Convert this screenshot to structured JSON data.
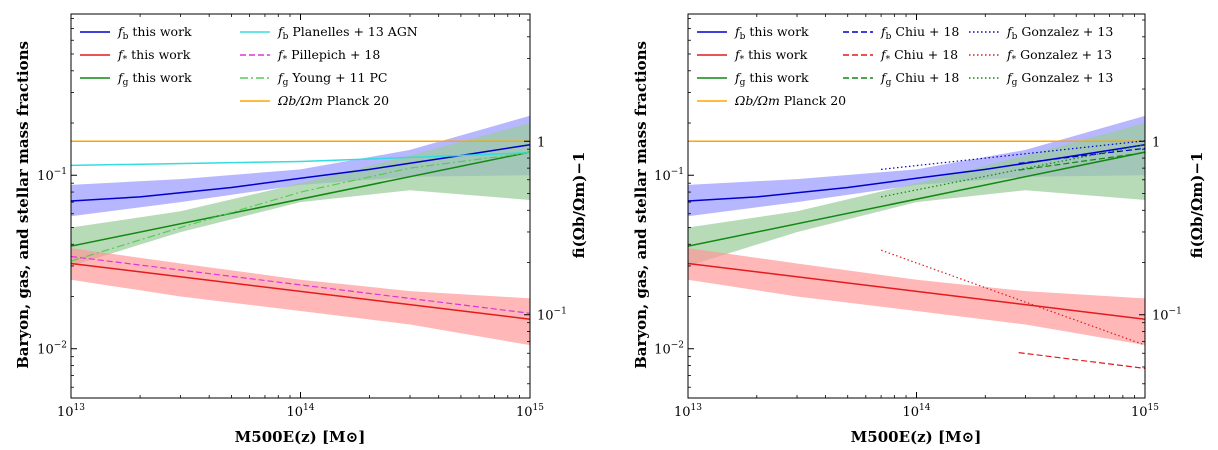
{
  "figure": {
    "xlabel": "M500E(z) [M⊙]",
    "ylabel_left": "Baryon, gas, and stellar mass fractions",
    "ylabel_right": "fi(Ωb/Ωm)−1"
  },
  "colors": {
    "fb": "#0000cc",
    "fstar": "#e41a1c",
    "fg": "#118811",
    "fb_band": "#9999ff",
    "fstar_band": "#ff9999",
    "fg_band": "#99cc99",
    "planck": "#ffa500",
    "planelles": "#33dddd",
    "pillepich": "#dd33dd",
    "young": "#55cc55"
  },
  "chart_data": [
    {
      "type": "line",
      "x_scale": "log",
      "y_scale": "log",
      "xlim": [
        10000000000000.0,
        1000000000000000.0
      ],
      "ylim": [
        0.0052,
        0.85
      ],
      "right_axis": {
        "scale": "log",
        "ticks": [
          {
            "value": 1,
            "label": "1"
          },
          {
            "value": 0.1,
            "label": "10−1"
          }
        ],
        "omega_b_over_omega_m": 0.157
      },
      "x_ticks": [
        {
          "value": 10000000000000.0,
          "label": "1013"
        },
        {
          "value": 100000000000000.0,
          "label": "1014"
        },
        {
          "value": 1000000000000000.0,
          "label": "1015"
        }
      ],
      "y_ticks": [
        {
          "value": 0.1,
          "label": "10−1"
        },
        {
          "value": 0.01,
          "label": "10−2"
        }
      ],
      "legend_position": "top",
      "bands": [
        {
          "series": "fb",
          "x": [
            10000000000000.0,
            30000000000000.0,
            100000000000000.0,
            300000000000000.0,
            1000000000000000.0
          ],
          "lower": [
            0.058,
            0.07,
            0.088,
            0.098,
            0.1
          ],
          "upper": [
            0.088,
            0.095,
            0.108,
            0.14,
            0.22
          ]
        },
        {
          "series": "fg",
          "x": [
            10000000000000.0,
            30000000000000.0,
            100000000000000.0,
            300000000000000.0,
            1000000000000000.0
          ],
          "lower": [
            0.03,
            0.047,
            0.07,
            0.082,
            0.072
          ],
          "upper": [
            0.05,
            0.062,
            0.09,
            0.13,
            0.2
          ]
        },
        {
          "series": "fstar",
          "x": [
            10000000000000.0,
            30000000000000.0,
            100000000000000.0,
            300000000000000.0,
            1000000000000000.0
          ],
          "lower": [
            0.025,
            0.02,
            0.0165,
            0.0138,
            0.0105
          ],
          "upper": [
            0.038,
            0.031,
            0.025,
            0.0215,
            0.0195
          ]
        }
      ],
      "series": [
        {
          "name": "fb this work",
          "key": "fb",
          "style": "solid",
          "x": [
            10000000000000.0,
            20000000000000.0,
            50000000000000.0,
            100000000000000.0,
            200000000000000.0,
            500000000000000.0,
            1000000000000000.0
          ],
          "y": [
            0.071,
            0.075,
            0.085,
            0.096,
            0.108,
            0.13,
            0.15
          ]
        },
        {
          "name": "f* this work",
          "key": "fstar",
          "style": "solid",
          "x": [
            10000000000000.0,
            1000000000000000.0
          ],
          "y": [
            0.031,
            0.0148
          ]
        },
        {
          "name": "fg this work",
          "key": "fg",
          "style": "solid",
          "x": [
            10000000000000.0,
            1000000000000000.0
          ],
          "y": [
            0.039,
            0.136
          ]
        },
        {
          "name": "Ωb/Ωm Planck 20",
          "key": "planck",
          "style": "solid",
          "x": [
            10000000000000.0,
            1000000000000000.0
          ],
          "y": [
            0.157,
            0.157
          ]
        },
        {
          "name": "fb Planelles + 13 AGN",
          "key": "planelles",
          "style": "solid",
          "x": [
            10000000000000.0,
            100000000000000.0,
            500000000000000.0,
            1000000000000000.0
          ],
          "y": [
            0.114,
            0.12,
            0.13,
            0.135
          ]
        },
        {
          "name": "f* Pillepich + 18",
          "key": "pillepich",
          "style": "dashed",
          "x": [
            10000000000000.0,
            1000000000000000.0
          ],
          "y": [
            0.034,
            0.016
          ]
        },
        {
          "name": "fg Young + 11 PC",
          "key": "young",
          "style": "dashdot",
          "x": [
            10000000000000.0,
            30000000000000.0,
            100000000000000.0,
            300000000000000.0,
            1000000000000000.0
          ],
          "y": [
            0.032,
            0.05,
            0.08,
            0.11,
            0.135
          ]
        }
      ],
      "legend": [
        {
          "key": "fb",
          "style": "solid",
          "sym": "f",
          "sub": "b",
          "text": "this work"
        },
        {
          "key": "fstar",
          "style": "solid",
          "sym": "f",
          "sub": "*",
          "text": "this work"
        },
        {
          "key": "fg",
          "style": "solid",
          "sym": "f",
          "sub": "g",
          "text": "this work"
        },
        {
          "key": "planelles",
          "style": "solid",
          "sym": "f",
          "sub": "b",
          "text": "Planelles + 13 AGN"
        },
        {
          "key": "pillepich",
          "style": "dashed",
          "sym": "f",
          "sub": "*",
          "text": "Pillepich + 18"
        },
        {
          "key": "young",
          "style": "dashdot",
          "sym": "f",
          "sub": "g",
          "text": "Young + 11 PC"
        },
        {
          "key": "planck",
          "style": "solid",
          "sym": "Ωb/Ωm",
          "sub": "",
          "text": "Planck 20"
        }
      ]
    },
    {
      "type": "line",
      "x_scale": "log",
      "y_scale": "log",
      "xlim": [
        10000000000000.0,
        1000000000000000.0
      ],
      "ylim": [
        0.0052,
        0.85
      ],
      "right_axis": {
        "scale": "log",
        "ticks": [
          {
            "value": 1,
            "label": "1"
          },
          {
            "value": 0.1,
            "label": "10−1"
          }
        ],
        "omega_b_over_omega_m": 0.157
      },
      "x_ticks": [
        {
          "value": 10000000000000.0,
          "label": "1013"
        },
        {
          "value": 100000000000000.0,
          "label": "1014"
        },
        {
          "value": 1000000000000000.0,
          "label": "1015"
        }
      ],
      "y_ticks": [
        {
          "value": 0.1,
          "label": "10−1"
        },
        {
          "value": 0.01,
          "label": "10−2"
        }
      ],
      "legend_position": "top",
      "bands": [
        {
          "series": "fb",
          "x": [
            10000000000000.0,
            30000000000000.0,
            100000000000000.0,
            300000000000000.0,
            1000000000000000.0
          ],
          "lower": [
            0.058,
            0.07,
            0.088,
            0.098,
            0.1
          ],
          "upper": [
            0.088,
            0.095,
            0.108,
            0.14,
            0.22
          ]
        },
        {
          "series": "fg",
          "x": [
            10000000000000.0,
            30000000000000.0,
            100000000000000.0,
            300000000000000.0,
            1000000000000000.0
          ],
          "lower": [
            0.03,
            0.047,
            0.07,
            0.082,
            0.072
          ],
          "upper": [
            0.05,
            0.062,
            0.09,
            0.13,
            0.2
          ]
        },
        {
          "series": "fstar",
          "x": [
            10000000000000.0,
            30000000000000.0,
            100000000000000.0,
            300000000000000.0,
            1000000000000000.0
          ],
          "lower": [
            0.025,
            0.02,
            0.0165,
            0.0138,
            0.0105
          ],
          "upper": [
            0.038,
            0.031,
            0.025,
            0.0215,
            0.0195
          ]
        }
      ],
      "series": [
        {
          "name": "fb this work",
          "key": "fb",
          "style": "solid",
          "x": [
            10000000000000.0,
            20000000000000.0,
            50000000000000.0,
            100000000000000.0,
            200000000000000.0,
            500000000000000.0,
            1000000000000000.0
          ],
          "y": [
            0.071,
            0.075,
            0.085,
            0.096,
            0.108,
            0.13,
            0.15
          ]
        },
        {
          "name": "f* this work",
          "key": "fstar",
          "style": "solid",
          "x": [
            10000000000000.0,
            1000000000000000.0
          ],
          "y": [
            0.031,
            0.0148
          ]
        },
        {
          "name": "fg this work",
          "key": "fg",
          "style": "solid",
          "x": [
            10000000000000.0,
            1000000000000000.0
          ],
          "y": [
            0.039,
            0.136
          ]
        },
        {
          "name": "Ωb/Ωm Planck 20",
          "key": "planck",
          "style": "solid",
          "x": [
            10000000000000.0,
            1000000000000000.0
          ],
          "y": [
            0.157,
            0.157
          ]
        },
        {
          "name": "fb Chiu + 18",
          "key": "fb",
          "style": "dashed",
          "x": [
            280000000000000.0,
            1000000000000000.0
          ],
          "y": [
            0.117,
            0.143
          ]
        },
        {
          "name": "f* Chiu + 18",
          "key": "fstar",
          "style": "dashed",
          "x": [
            280000000000000.0,
            1000000000000000.0
          ],
          "y": [
            0.0095,
            0.0077
          ]
        },
        {
          "name": "fg Chiu + 18",
          "key": "fg",
          "style": "dashed",
          "x": [
            280000000000000.0,
            1000000000000000.0
          ],
          "y": [
            0.107,
            0.135
          ]
        },
        {
          "name": "fb Gonzalez + 13",
          "key": "fb",
          "style": "dotted",
          "x": [
            70000000000000.0,
            1000000000000000.0
          ],
          "y": [
            0.108,
            0.158
          ]
        },
        {
          "name": "f* Gonzalez + 13",
          "key": "fstar",
          "style": "dotted",
          "x": [
            70000000000000.0,
            1000000000000000.0
          ],
          "y": [
            0.037,
            0.0105
          ]
        },
        {
          "name": "fg Gonzalez + 13",
          "key": "fg",
          "style": "dotted",
          "x": [
            70000000000000.0,
            1000000000000000.0
          ],
          "y": [
            0.075,
            0.15
          ]
        }
      ],
      "legend": [
        {
          "key": "fb",
          "style": "solid",
          "sym": "f",
          "sub": "b",
          "text": "this work"
        },
        {
          "key": "fstar",
          "style": "solid",
          "sym": "f",
          "sub": "*",
          "text": "this work"
        },
        {
          "key": "fg",
          "style": "solid",
          "sym": "f",
          "sub": "g",
          "text": "this work"
        },
        {
          "key": "planck",
          "style": "solid",
          "sym": "Ωb/Ωm",
          "sub": "",
          "text": "Planck 20"
        },
        {
          "key": "fb",
          "style": "dashed",
          "sym": "f",
          "sub": "b",
          "text": "Chiu + 18"
        },
        {
          "key": "fstar",
          "style": "dashed",
          "sym": "f",
          "sub": "*",
          "text": "Chiu + 18"
        },
        {
          "key": "fg",
          "style": "dashed",
          "sym": "f",
          "sub": "g",
          "text": "Chiu + 18"
        },
        {
          "key": "fb",
          "style": "dotted",
          "sym": "f",
          "sub": "b",
          "text": "Gonzalez + 13"
        },
        {
          "key": "fstar",
          "style": "dotted",
          "sym": "f",
          "sub": "*",
          "text": "Gonzalez + 13"
        },
        {
          "key": "fg",
          "style": "dotted",
          "sym": "f",
          "sub": "g",
          "text": "Gonzalez + 13"
        }
      ]
    }
  ]
}
